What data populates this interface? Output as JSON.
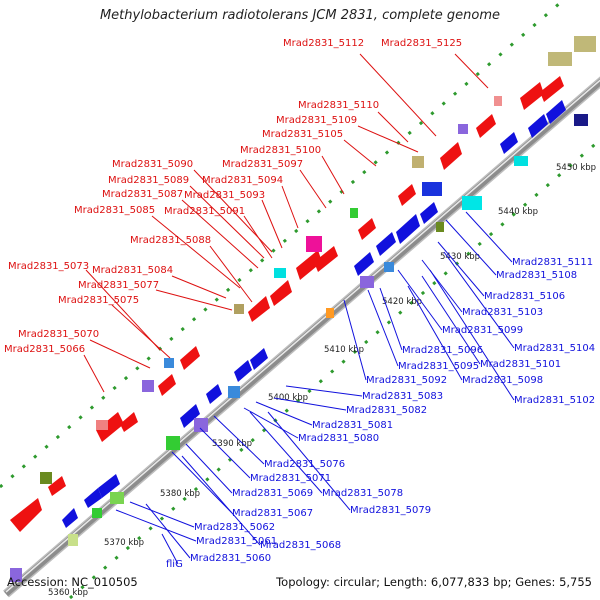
{
  "title": "Methylobacterium radiotolerans JCM 2831, complete genome",
  "accession_label": "Accession: NC_010505",
  "summary_label": "Topology: circular; Length: 6,077,833 bp; Genes: 5,755",
  "colors": {
    "top_strand_label": "#dd1111",
    "bottom_strand_label": "#1111dd",
    "backbone": "#9a9a9a"
  },
  "scale": {
    "ticks": [
      "5360 kbp",
      "5370 kbp",
      "5380 kbp",
      "5390 kbp",
      "5400 kbp",
      "5410 kbp",
      "5420 kbp",
      "5430 kbp",
      "5440 kbp",
      "5450 kbp"
    ]
  },
  "top_labels": [
    "Mrad2831_5112",
    "Mrad2831_5125",
    "Mrad2831_5110",
    "Mrad2831_5109",
    "Mrad2831_5105",
    "Mrad2831_5100",
    "Mrad2831_5090",
    "Mrad2831_5097",
    "Mrad2831_5089",
    "Mrad2831_5094",
    "Mrad2831_5087",
    "Mrad2831_5093",
    "Mrad2831_5085",
    "Mrad2831_5091",
    "Mrad2831_5088",
    "Mrad2831_5073",
    "Mrad2831_5084",
    "Mrad2831_5077",
    "Mrad2831_5075",
    "Mrad2831_5070",
    "Mrad2831_5066"
  ],
  "bottom_labels": [
    "Mrad2831_5111",
    "Mrad2831_5108",
    "Mrad2831_5106",
    "Mrad2831_5103",
    "Mrad2831_5099",
    "Mrad2831_5104",
    "Mrad2831_5096",
    "Mrad2831_5101",
    "Mrad2831_5095",
    "Mrad2831_5098",
    "Mrad2831_5092",
    "Mrad2831_5102",
    "Mrad2831_5083",
    "Mrad2831_5082",
    "Mrad2831_5081",
    "Mrad2831_5080",
    "Mrad2831_5076",
    "Mrad2831_5071",
    "Mrad2831_5078",
    "Mrad2831_5069",
    "Mrad2831_5079",
    "Mrad2831_5067",
    "Mrad2831_5062",
    "Mrad2831_5068",
    "Mrad2831_5061",
    "Mrad2831_5060",
    "fliG"
  ]
}
